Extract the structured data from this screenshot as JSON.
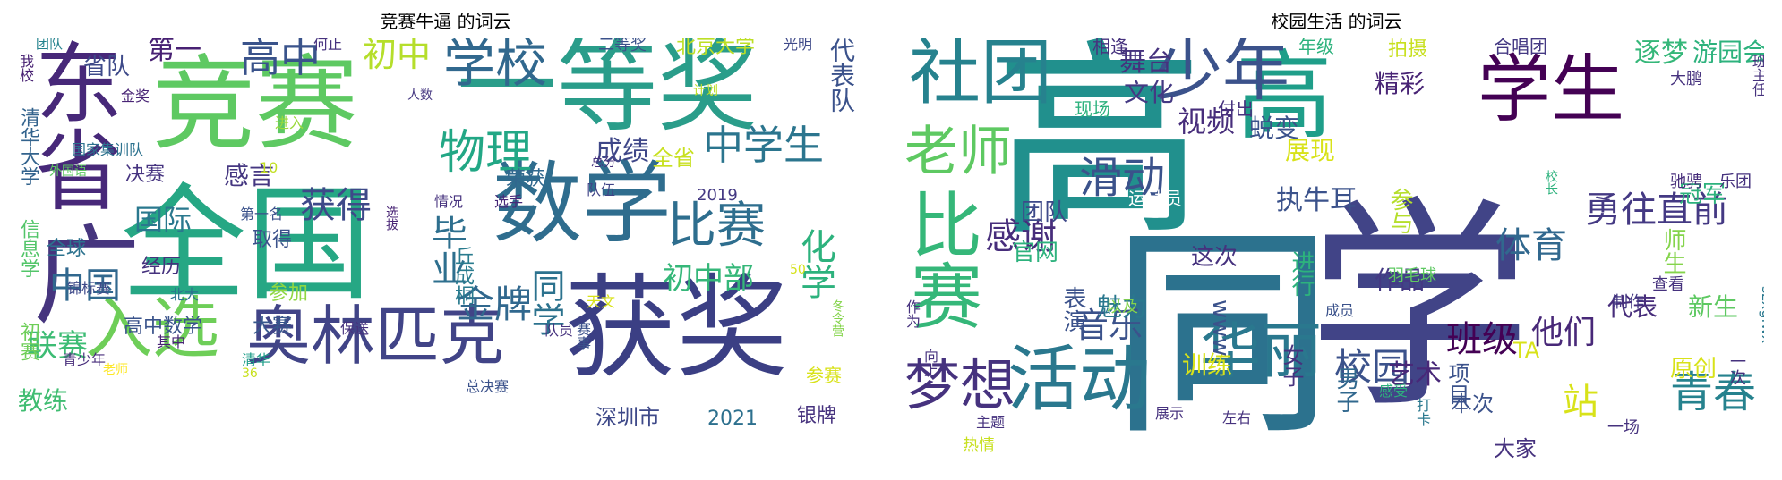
{
  "chart_data": [
    {
      "type": "wordcloud",
      "title": "竞赛牛逼 的词云",
      "words": [
        {
          "text": "竞赛",
          "color": "#5ec962"
        },
        {
          "text": "全国",
          "color": "#26a784"
        },
        {
          "text": "一等奖",
          "color": "#2a9d8a"
        },
        {
          "text": "数学",
          "color": "#2f6d8e"
        },
        {
          "text": "获奖",
          "color": "#3b3f84"
        },
        {
          "text": "东省",
          "color": "#472879"
        },
        {
          "text": "广",
          "color": "#46357e"
        },
        {
          "text": "奥林匹克",
          "color": "#414487"
        },
        {
          "text": "入选",
          "color": "#6ece58"
        },
        {
          "text": "学校",
          "color": "#31688e"
        },
        {
          "text": "比赛",
          "color": "#2e6e8e"
        },
        {
          "text": "物理",
          "color": "#22a785"
        },
        {
          "text": "中学生",
          "color": "#2b758e"
        },
        {
          "text": "高中",
          "color": "#3a538b"
        },
        {
          "text": "初中",
          "color": "#b5de2b"
        },
        {
          "text": "金牌",
          "color": "#31688e"
        },
        {
          "text": "化学",
          "color": "#2db27d"
        },
        {
          "text": "初中部",
          "color": "#35b779"
        },
        {
          "text": "北京大学",
          "color": "#bddf26"
        },
        {
          "text": "代表队",
          "color": "#3b528b"
        },
        {
          "text": "毕业",
          "color": "#2e6f8e"
        },
        {
          "text": "获得",
          "color": "#3e4989"
        },
        {
          "text": "国际",
          "color": "#2a788e"
        },
        {
          "text": "中国",
          "color": "#31688e"
        },
        {
          "text": "联赛",
          "color": "#3dbc74"
        },
        {
          "text": "同学",
          "color": "#2c728e"
        },
        {
          "text": "成绩",
          "color": "#3f4788"
        },
        {
          "text": "感言",
          "color": "#453781"
        },
        {
          "text": "第一",
          "color": "#482173"
        },
        {
          "text": "省队",
          "color": "#3e4a89"
        },
        {
          "text": "全省",
          "color": "#c8e020"
        },
        {
          "text": "决赛",
          "color": "#463480"
        },
        {
          "text": "深圳市",
          "color": "#3e4989"
        },
        {
          "text": "银牌",
          "color": "#46327e"
        },
        {
          "text": "参赛",
          "color": "#d8e219"
        },
        {
          "text": "2021",
          "color": "#2d708e"
        },
        {
          "text": "教练",
          "color": "#40bd72"
        },
        {
          "text": "清华大学",
          "color": "#33638d"
        },
        {
          "text": "信息学",
          "color": "#52c569"
        },
        {
          "text": "初赛",
          "color": "#6ece58"
        },
        {
          "text": "高中数学",
          "color": "#3a538b"
        },
        {
          "text": "大赛",
          "color": "#38588c"
        },
        {
          "text": "参加",
          "color": "#90d743"
        },
        {
          "text": "取得",
          "color": "#3b528b"
        },
        {
          "text": "经历",
          "color": "#46327e"
        },
        {
          "text": "全球",
          "color": "#2c728e"
        },
        {
          "text": "丘成桐",
          "color": "#297b8e"
        },
        {
          "text": "荣获",
          "color": "#31688e"
        },
        {
          "text": "二等奖",
          "color": "#3b528b"
        },
        {
          "text": "光明",
          "color": "#3e4989"
        },
        {
          "text": "何止",
          "color": "#46327e"
        },
        {
          "text": "团队",
          "color": "#25838e"
        },
        {
          "text": "我校",
          "color": "#482173"
        },
        {
          "text": "金奖",
          "color": "#482475"
        },
        {
          "text": "进入",
          "color": "#9bd93c"
        },
        {
          "text": "国家集训队",
          "color": "#2c728e"
        },
        {
          "text": "外国语",
          "color": "#5ec962"
        },
        {
          "text": "10",
          "color": "#c2df23"
        },
        {
          "text": "人数",
          "color": "#453781"
        },
        {
          "text": "计划",
          "color": "#bddf26"
        },
        {
          "text": "总分",
          "color": "#46327e"
        },
        {
          "text": "2019",
          "color": "#443983"
        },
        {
          "text": "队伍",
          "color": "#414487"
        },
        {
          "text": "选手",
          "color": "#482878"
        },
        {
          "text": "情况",
          "color": "#46327e"
        },
        {
          "text": "选拔",
          "color": "#482475"
        },
        {
          "text": "第一名",
          "color": "#3b528b"
        },
        {
          "text": "锦标赛",
          "color": "#3e4989"
        },
        {
          "text": "北大",
          "color": "#2c728e"
        },
        {
          "text": "清华",
          "color": "#1f9e89"
        },
        {
          "text": "其中",
          "color": "#482475"
        },
        {
          "text": "保送",
          "color": "#46327e"
        },
        {
          "text": "天文",
          "color": "#d8e219"
        },
        {
          "text": "50",
          "color": "#d5e21a"
        },
        {
          "text": "赛事",
          "color": "#3b528b"
        },
        {
          "text": "冬令营",
          "color": "#84d44b"
        },
        {
          "text": "队员",
          "color": "#46327e"
        },
        {
          "text": "总决赛",
          "color": "#3b528b"
        },
        {
          "text": "36",
          "color": "#c8e020"
        },
        {
          "text": "青少年",
          "color": "#472d7b"
        },
        {
          "text": "老师",
          "color": "#fde725"
        }
      ]
    },
    {
      "type": "wordcloud",
      "title": "校园生活 的词云",
      "words": [
        {
          "text": "高",
          "color": "#21908d"
        },
        {
          "text": "同",
          "color": "#2c728e"
        },
        {
          "text": "学",
          "color": "#414487"
        },
        {
          "text": "学生",
          "color": "#440154"
        },
        {
          "text": "高",
          "color": "#1f9e89"
        },
        {
          "text": "社团",
          "color": "#26828e"
        },
        {
          "text": "少年",
          "color": "#3b528b"
        },
        {
          "text": "比赛",
          "color": "#35b779"
        },
        {
          "text": "活动",
          "color": "#2a788e"
        },
        {
          "text": "老师",
          "color": "#5ec962"
        },
        {
          "text": "梦想",
          "color": "#46327e"
        },
        {
          "text": "华丽",
          "color": "#2a788e"
        },
        {
          "text": "滑动",
          "color": "#3b528b"
        },
        {
          "text": "青春",
          "color": "#26828e"
        },
        {
          "text": "勇往直前",
          "color": "#443983"
        },
        {
          "text": "站",
          "color": "#d8e219"
        },
        {
          "text": "校园",
          "color": "#3b528b"
        },
        {
          "text": "班级",
          "color": "#440154"
        },
        {
          "text": "感谢",
          "color": "#472d7b"
        },
        {
          "text": "音乐",
          "color": "#3b528b"
        },
        {
          "text": "体育",
          "color": "#31688e"
        },
        {
          "text": "他们",
          "color": "#482878"
        },
        {
          "text": "舞台",
          "color": "#46327e"
        },
        {
          "text": "视频",
          "color": "#472d7b"
        },
        {
          "text": "蜕变",
          "color": "#3b528b"
        },
        {
          "text": "执牛耳",
          "color": "#3b528b"
        },
        {
          "text": "逐梦",
          "color": "#35b779"
        },
        {
          "text": "游园会",
          "color": "#2db27d"
        },
        {
          "text": "文化",
          "color": "#443983"
        },
        {
          "text": "精彩",
          "color": "#482475"
        },
        {
          "text": "展现",
          "color": "#d8e219"
        },
        {
          "text": "团队",
          "color": "#3e4989"
        },
        {
          "text": "作品",
          "color": "#443983"
        },
        {
          "text": "代表",
          "color": "#472d7b"
        },
        {
          "text": "新生",
          "color": "#5ec962"
        },
        {
          "text": "魅力",
          "color": "#2a788e"
        },
        {
          "text": "训练",
          "color": "#d8e219"
        },
        {
          "text": "艺术",
          "color": "#482878"
        },
        {
          "text": "男子",
          "color": "#31688e"
        },
        {
          "text": "项目",
          "color": "#3b528b"
        },
        {
          "text": "原创",
          "color": "#d8e219"
        },
        {
          "text": "大家",
          "color": "#46327e"
        },
        {
          "text": "这次",
          "color": "#46327e"
        },
        {
          "text": "官网",
          "color": "#2db27d"
        },
        {
          "text": "进行",
          "color": "#2db27d"
        },
        {
          "text": "表演",
          "color": "#3b528b"
        },
        {
          "text": "www",
          "color": "#3b528b"
        },
        {
          "text": "女子",
          "color": "#46327e"
        },
        {
          "text": "本次",
          "color": "#3b528b"
        },
        {
          "text": "冠军",
          "color": "#2db27d"
        },
        {
          "text": "师生",
          "color": "#84d44b"
        },
        {
          "text": "参与",
          "color": "#b5de2b"
        },
        {
          "text": "拍摄",
          "color": "#c8e020"
        },
        {
          "text": "合唱团",
          "color": "#443983"
        },
        {
          "text": "年级",
          "color": "#2db27d"
        },
        {
          "text": "相逢",
          "color": "#46327e"
        },
        {
          "text": "现场",
          "color": "#2db27d"
        },
        {
          "text": "付出",
          "color": "#46327e"
        },
        {
          "text": "运动员",
          "color": "#ffffff"
        },
        {
          "text": "羽毛球",
          "color": "#5ec962"
        },
        {
          "text": "以及",
          "color": "#84d44b"
        },
        {
          "text": "作为",
          "color": "#46327e"
        },
        {
          "text": "向上",
          "color": "#46327e"
        },
        {
          "text": "主题",
          "color": "#46327e"
        },
        {
          "text": "展示",
          "color": "#46327e"
        },
        {
          "text": "左右",
          "color": "#46327e"
        },
        {
          "text": "成员",
          "color": "#3b528b"
        },
        {
          "text": "感受",
          "color": "#2db27d"
        },
        {
          "text": "打卡",
          "color": "#2a788e"
        },
        {
          "text": "TA",
          "color": "#d8e219"
        },
        {
          "text": "热情",
          "color": "#c8e020"
        },
        {
          "text": "一场",
          "color": "#46327e"
        },
        {
          "text": "制作",
          "color": "#443983"
        },
        {
          "text": "查看",
          "color": "#46327e"
        },
        {
          "text": "一次",
          "color": "#46327e"
        },
        {
          "text": "szxgfwx",
          "color": "#2a788e"
        },
        {
          "text": "大鹏",
          "color": "#46327e"
        },
        {
          "text": "驰骋",
          "color": "#472d7b"
        },
        {
          "text": "乐团",
          "color": "#46327e"
        },
        {
          "text": "校长",
          "color": "#2db27d"
        },
        {
          "text": "班主任",
          "color": "#46327e"
        }
      ]
    }
  ]
}
